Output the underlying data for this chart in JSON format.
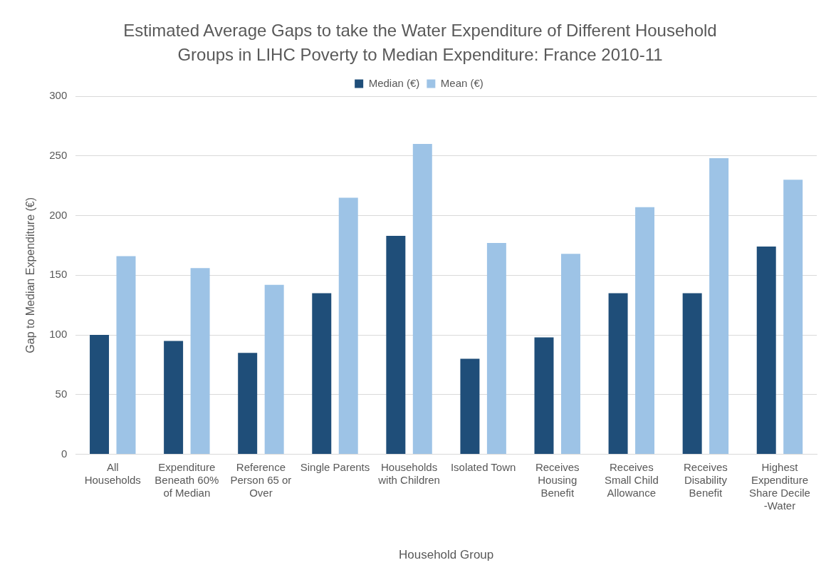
{
  "chart_data": {
    "type": "bar",
    "title": "Estimated Average Gaps to take the Water Expenditure of Different Household Groups in LIHC Poverty to Median Expenditure: France 2010-11",
    "xlabel": "Household Group",
    "ylabel": "Gap to Median Expenditure (€)",
    "categories": [
      "All Households",
      "Expenditure Beneath 60% of Median",
      "Reference Person 65 or Over",
      "Single Parents",
      "Households with Children",
      "Isolated Town",
      "Receives Housing Benefit",
      "Receives Small Child Allowance",
      "Receives Disability Benefit",
      "Highest Expenditure Share Decile -Water"
    ],
    "series": [
      {
        "name": "Median (€)",
        "color": "#1f4e79",
        "values": [
          100,
          95,
          85,
          135,
          183,
          80,
          98,
          135,
          135,
          174
        ]
      },
      {
        "name": "Mean (€)",
        "color": "#9dc3e6",
        "values": [
          166,
          156,
          142,
          215,
          260,
          177,
          168,
          207,
          248,
          230
        ]
      }
    ],
    "ylim": [
      0,
      300
    ],
    "yticks": [
      0,
      50,
      100,
      150,
      200,
      250,
      300
    ],
    "grid": "y",
    "legend": "top"
  }
}
